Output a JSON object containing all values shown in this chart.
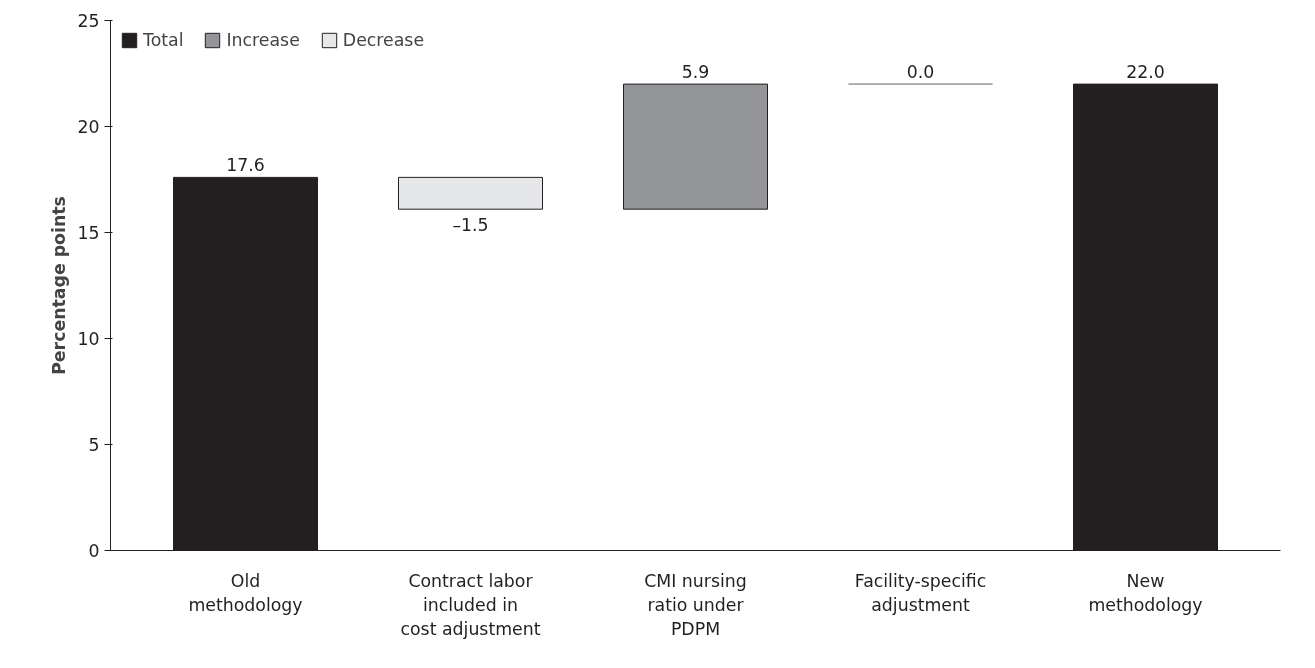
{
  "chart_data": {
    "type": "bar",
    "ylabel": "Percentage points",
    "categories": [
      "Old\nmethodology",
      "Contract labor\nincluded in\ncost adjustment",
      "CMI nursing\nratio under\nPDPM",
      "Facility-specific\nadjustment",
      "New\nmethodology"
    ],
    "series": [
      {
        "name": "Total",
        "color": "#231f20",
        "values": [
          17.6,
          null,
          null,
          null,
          22.0
        ],
        "base": [
          0,
          null,
          null,
          null,
          0
        ],
        "value_labels": [
          "17.6",
          null,
          null,
          null,
          "22.0"
        ]
      },
      {
        "name": "Increase",
        "color": "#939598",
        "values": [
          null,
          null,
          5.9,
          0.0,
          null
        ],
        "base": [
          null,
          null,
          16.1,
          22.0,
          null
        ],
        "value_labels": [
          null,
          null,
          "5.9",
          "0.0",
          null
        ]
      },
      {
        "name": "Decrease",
        "color": "#e6e7e8",
        "values": [
          null,
          -1.5,
          null,
          null,
          null
        ],
        "base": [
          null,
          17.6,
          null,
          null,
          null
        ],
        "value_labels": [
          null,
          "–1.5",
          null,
          null,
          null
        ]
      }
    ],
    "ylim": [
      0,
      25
    ],
    "yticks": [
      0,
      5,
      10,
      15,
      20,
      25
    ],
    "grid": false,
    "legend": "top left"
  }
}
